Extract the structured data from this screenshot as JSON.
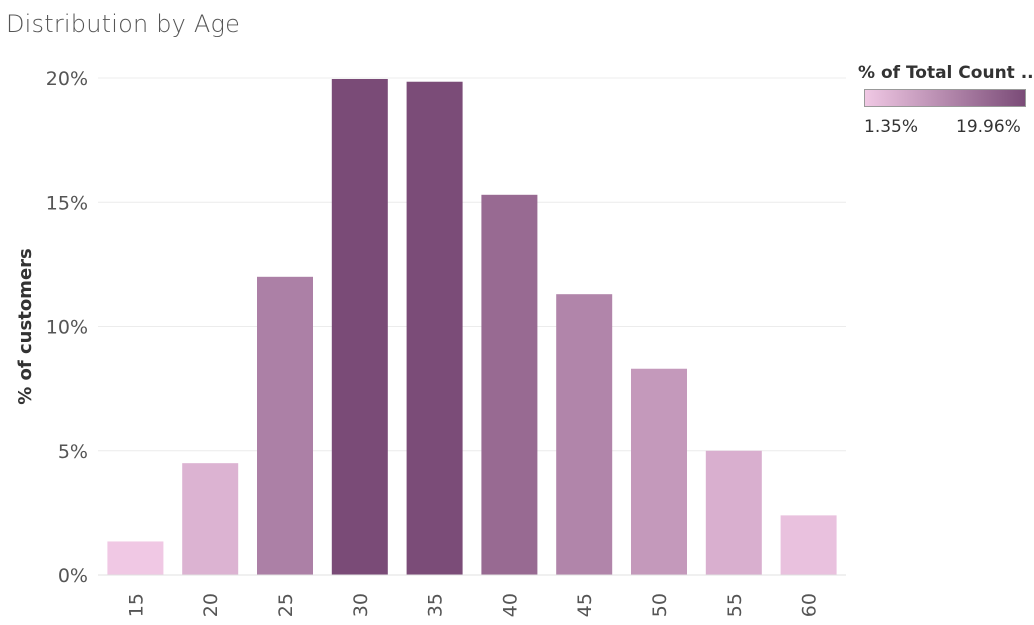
{
  "title": "Distribution by Age",
  "legend": {
    "title": "% of Total Count ..",
    "min_label": "1.35%",
    "max_label": "19.96%",
    "color_low": "#f0c8e4",
    "color_high": "#7a4b77"
  },
  "chart_data": {
    "type": "bar",
    "title": "Distribution by Age",
    "xlabel": "",
    "ylabel": "% of customers",
    "categories": [
      "15",
      "20",
      "25",
      "30",
      "35",
      "40",
      "45",
      "50",
      "55",
      "60"
    ],
    "values": [
      1.35,
      4.5,
      12.0,
      19.96,
      19.85,
      15.3,
      11.3,
      8.3,
      5.0,
      2.4
    ],
    "ylim": [
      0,
      20
    ],
    "yticks": [
      "0%",
      "5%",
      "10%",
      "15%",
      "20%"
    ],
    "color_scale": {
      "min": 1.35,
      "max": 19.96,
      "low": "#f0c8e4",
      "high": "#7a4b77"
    },
    "grid": true,
    "legend_position": "top-right"
  }
}
